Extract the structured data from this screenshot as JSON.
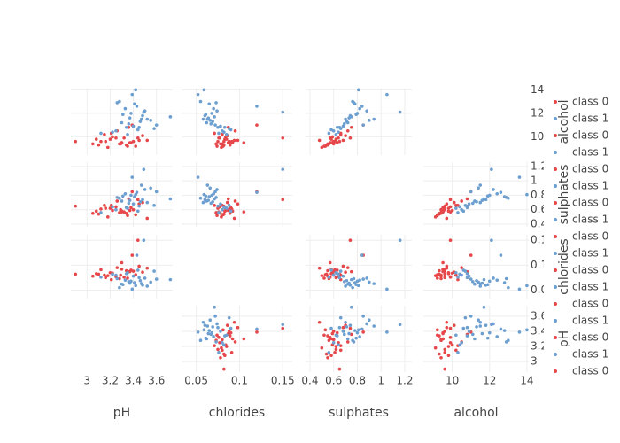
{
  "chart_data": {
    "type": "splom",
    "dimensions": [
      {
        "label": "pH",
        "lim": [
          2.86,
          3.74
        ],
        "ticks": [
          3,
          3.2,
          3.4,
          3.6
        ]
      },
      {
        "label": "chlorides",
        "lim": [
          0.033,
          0.161
        ],
        "ticks": [
          0.05,
          0.1,
          0.15
        ]
      },
      {
        "label": "sulphates",
        "lim": [
          0.363,
          1.26
        ],
        "ticks": [
          0.4,
          0.6,
          0.8,
          1,
          1.2
        ]
      },
      {
        "label": "alcohol",
        "lim": [
          8.45,
          14.1
        ],
        "ticks": [
          10,
          12,
          14
        ]
      }
    ],
    "grid": true,
    "series": [
      {
        "name": "class 0",
        "color": "#e6474a",
        "values": [
          [
            3.05,
            3.2,
            3.3,
            3.15,
            3.35,
            3.4,
            3.26,
            3.1,
            3.32,
            3.38,
            3.22,
            3.18,
            3.45,
            3.28,
            3.36,
            3.12,
            3.42,
            3.25,
            3.3,
            3.48,
            3.08,
            3.34,
            3.16,
            3.39,
            3.29,
            3.52,
            3.21,
            3.37,
            2.9,
            3.44
          ],
          [
            0.078,
            0.085,
            0.092,
            0.08,
            0.074,
            0.088,
            0.095,
            0.082,
            0.076,
            0.09,
            0.084,
            0.079,
            0.098,
            0.073,
            0.087,
            0.091,
            0.081,
            0.077,
            0.105,
            0.086,
            0.083,
            0.089,
            0.075,
            0.12,
            0.08,
            0.094,
            0.071,
            0.087,
            0.082,
            0.15
          ],
          [
            0.55,
            0.62,
            0.58,
            0.66,
            0.52,
            0.6,
            0.72,
            0.54,
            0.57,
            0.63,
            0.59,
            0.5,
            0.68,
            0.56,
            0.75,
            0.61,
            0.53,
            0.64,
            0.57,
            0.7,
            0.58,
            0.55,
            0.62,
            0.85,
            0.6,
            0.48,
            0.66,
            0.59,
            0.65,
            0.74
          ],
          [
            9.4,
            9.8,
            9.5,
            10.2,
            9.2,
            9.6,
            10.5,
            9.3,
            9.9,
            9.5,
            10.0,
            9.1,
            9.7,
            9.4,
            10.8,
            9.6,
            9.2,
            9.9,
            9.5,
            10.1,
            9.8,
            9.3,
            9.6,
            11.0,
            9.4,
            9.7,
            10.3,
            9.5,
            9.6,
            9.9
          ]
        ]
      },
      {
        "name": "class 1",
        "color": "#6c9fd0",
        "values": [
          [
            3.3,
            3.45,
            3.38,
            3.52,
            3.25,
            3.41,
            3.6,
            3.35,
            3.48,
            3.33,
            3.4,
            3.55,
            3.28,
            3.44,
            3.37,
            3.5,
            3.22,
            3.46,
            3.39,
            3.58,
            3.31,
            3.43,
            3.12,
            3.36,
            3.49,
            3.72,
            3.42,
            3.34,
            3.47,
            3.26
          ],
          [
            0.062,
            0.075,
            0.068,
            0.058,
            0.08,
            0.065,
            0.072,
            0.085,
            0.06,
            0.07,
            0.078,
            0.066,
            0.055,
            0.09,
            0.064,
            0.074,
            0.082,
            0.069,
            0.052,
            0.088,
            0.061,
            0.12,
            0.076,
            0.067,
            0.15,
            0.071,
            0.059,
            0.083,
            0.063,
            0.073
          ],
          [
            0.72,
            0.65,
            0.8,
            0.7,
            0.6,
            0.78,
            0.85,
            0.62,
            0.74,
            0.82,
            0.68,
            0.9,
            0.76,
            0.58,
            0.73,
            0.88,
            0.64,
            0.71,
            1.05,
            0.66,
            0.79,
            0.84,
            0.56,
            0.69,
            1.16,
            0.75,
            0.81,
            0.63,
            0.94,
            0.77
          ],
          [
            11.2,
            10.8,
            12.0,
            11.5,
            10.5,
            12.8,
            11.0,
            10.2,
            11.8,
            12.4,
            10.9,
            11.4,
            13.0,
            10.6,
            11.6,
            12.2,
            10.4,
            11.3,
            13.6,
            10.7,
            11.9,
            12.6,
            10.3,
            11.1,
            12.1,
            11.7,
            14.0,
            10.8,
            11.5,
            12.9
          ]
        ]
      }
    ]
  }
}
